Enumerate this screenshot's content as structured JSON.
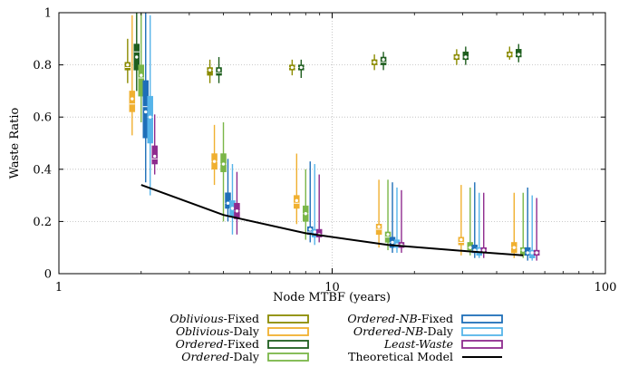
{
  "chart_data": {
    "type": "boxplot",
    "xscale": "log",
    "xlim": [
      1,
      100
    ],
    "ylim": [
      0,
      1
    ],
    "xlabel": "Node MTBF (years)",
    "ylabel": "Waste Ratio",
    "x_tick_labels": [
      "1",
      "10",
      "100"
    ],
    "y_tick_labels": [
      "0",
      "0.2",
      "0.4",
      "0.6",
      "0.8",
      "1"
    ],
    "grid": "dotted",
    "legend_position": "bottom",
    "categories": [
      2,
      4,
      8,
      16,
      32,
      50
    ],
    "series": [
      {
        "key": "oblivious-fixed",
        "name_em": "Oblivious",
        "name_rest": "-Fixed",
        "color": "#8b8b00",
        "stats": [
          {
            "min": 0.73,
            "q1": 0.78,
            "median": 0.79,
            "q3": 0.81,
            "max": 0.9,
            "mean": 0.8
          },
          {
            "min": 0.73,
            "q1": 0.76,
            "median": 0.78,
            "q3": 0.79,
            "max": 0.82,
            "mean": 0.78
          },
          {
            "min": 0.76,
            "q1": 0.78,
            "median": 0.79,
            "q3": 0.8,
            "max": 0.82,
            "mean": 0.79
          },
          {
            "min": 0.78,
            "q1": 0.8,
            "median": 0.81,
            "q3": 0.82,
            "max": 0.84,
            "mean": 0.81
          },
          {
            "min": 0.8,
            "q1": 0.82,
            "median": 0.83,
            "q3": 0.84,
            "max": 0.86,
            "mean": 0.83
          },
          {
            "min": 0.82,
            "q1": 0.83,
            "median": 0.84,
            "q3": 0.85,
            "max": 0.87,
            "mean": 0.84
          }
        ]
      },
      {
        "key": "oblivious-daly",
        "name_em": "Oblivious",
        "name_rest": "-Daly",
        "color": "#f0b030",
        "stats": [
          {
            "min": 0.53,
            "q1": 0.62,
            "median": 0.65,
            "q3": 0.7,
            "max": 0.99,
            "mean": 0.67
          },
          {
            "min": 0.34,
            "q1": 0.4,
            "median": 0.43,
            "q3": 0.46,
            "max": 0.57,
            "mean": 0.43
          },
          {
            "min": 0.19,
            "q1": 0.25,
            "median": 0.27,
            "q3": 0.3,
            "max": 0.46,
            "mean": 0.28
          },
          {
            "min": 0.1,
            "q1": 0.15,
            "median": 0.17,
            "q3": 0.19,
            "max": 0.36,
            "mean": 0.18
          },
          {
            "min": 0.07,
            "q1": 0.11,
            "median": 0.12,
            "q3": 0.14,
            "max": 0.34,
            "mean": 0.13
          },
          {
            "min": 0.06,
            "q1": 0.08,
            "median": 0.1,
            "q3": 0.12,
            "max": 0.31,
            "mean": 0.1
          }
        ]
      },
      {
        "key": "ordered-fixed",
        "name_em": "Ordered",
        "name_rest": "-Fixed",
        "color": "#1e5e1e",
        "stats": [
          {
            "min": 0.7,
            "q1": 0.78,
            "median": 0.85,
            "q3": 0.88,
            "max": 1.0,
            "mean": 0.83
          },
          {
            "min": 0.73,
            "q1": 0.76,
            "median": 0.77,
            "q3": 0.79,
            "max": 0.83,
            "mean": 0.78
          },
          {
            "min": 0.75,
            "q1": 0.78,
            "median": 0.79,
            "q3": 0.8,
            "max": 0.82,
            "mean": 0.79
          },
          {
            "min": 0.78,
            "q1": 0.8,
            "median": 0.81,
            "q3": 0.83,
            "max": 0.85,
            "mean": 0.82
          },
          {
            "min": 0.8,
            "q1": 0.82,
            "median": 0.83,
            "q3": 0.85,
            "max": 0.87,
            "mean": 0.83
          },
          {
            "min": 0.81,
            "q1": 0.83,
            "median": 0.84,
            "q3": 0.86,
            "max": 0.88,
            "mean": 0.84
          }
        ]
      },
      {
        "key": "ordered-daly",
        "name_em": "Ordered",
        "name_rest": "-Daly",
        "color": "#7ab648",
        "stats": [
          {
            "min": 0.58,
            "q1": 0.68,
            "median": 0.75,
            "q3": 0.8,
            "max": 1.0,
            "mean": 0.76
          },
          {
            "min": 0.2,
            "q1": 0.39,
            "median": 0.42,
            "q3": 0.46,
            "max": 0.58,
            "mean": 0.42
          },
          {
            "min": 0.13,
            "q1": 0.2,
            "median": 0.23,
            "q3": 0.26,
            "max": 0.4,
            "mean": 0.23
          },
          {
            "min": 0.09,
            "q1": 0.12,
            "median": 0.14,
            "q3": 0.16,
            "max": 0.36,
            "mean": 0.15
          },
          {
            "min": 0.07,
            "q1": 0.09,
            "median": 0.1,
            "q3": 0.12,
            "max": 0.33,
            "mean": 0.1
          },
          {
            "min": 0.06,
            "q1": 0.07,
            "median": 0.09,
            "q3": 0.1,
            "max": 0.31,
            "mean": 0.09
          }
        ]
      },
      {
        "key": "ordered-nb-fixed",
        "name_em": "Ordered-NB",
        "name_rest": "-Fixed",
        "color": "#1f6fb8",
        "stats": [
          {
            "min": 0.35,
            "q1": 0.52,
            "median": 0.64,
            "q3": 0.74,
            "max": 1.0,
            "mean": 0.62
          },
          {
            "min": 0.2,
            "q1": 0.25,
            "median": 0.27,
            "q3": 0.31,
            "max": 0.44,
            "mean": 0.27
          },
          {
            "min": 0.12,
            "q1": 0.15,
            "median": 0.16,
            "q3": 0.18,
            "max": 0.43,
            "mean": 0.17
          },
          {
            "min": 0.08,
            "q1": 0.1,
            "median": 0.12,
            "q3": 0.14,
            "max": 0.35,
            "mean": 0.12
          },
          {
            "min": 0.06,
            "q1": 0.08,
            "median": 0.09,
            "q3": 0.11,
            "max": 0.35,
            "mean": 0.09
          },
          {
            "min": 0.05,
            "q1": 0.07,
            "median": 0.08,
            "q3": 0.1,
            "max": 0.33,
            "mean": 0.08
          }
        ]
      },
      {
        "key": "ordered-nb-daly",
        "name_em": "Ordered-NB",
        "name_rest": "-Daly",
        "color": "#56b4e9",
        "stats": [
          {
            "min": 0.3,
            "q1": 0.5,
            "median": 0.6,
            "q3": 0.68,
            "max": 0.99,
            "mean": 0.6
          },
          {
            "min": 0.15,
            "q1": 0.22,
            "median": 0.25,
            "q3": 0.28,
            "max": 0.42,
            "mean": 0.25
          },
          {
            "min": 0.11,
            "q1": 0.14,
            "median": 0.15,
            "q3": 0.17,
            "max": 0.42,
            "mean": 0.16
          },
          {
            "min": 0.08,
            "q1": 0.1,
            "median": 0.11,
            "q3": 0.13,
            "max": 0.33,
            "mean": 0.11
          },
          {
            "min": 0.06,
            "q1": 0.07,
            "median": 0.09,
            "q3": 0.1,
            "max": 0.31,
            "mean": 0.09
          },
          {
            "min": 0.05,
            "q1": 0.06,
            "median": 0.08,
            "q3": 0.09,
            "max": 0.3,
            "mean": 0.08
          }
        ]
      },
      {
        "key": "least-waste",
        "name_em": "Least-Waste",
        "name_rest": "",
        "color": "#8e2b8e",
        "stats": [
          {
            "min": 0.38,
            "q1": 0.42,
            "median": 0.44,
            "q3": 0.49,
            "max": 0.61,
            "mean": 0.45
          },
          {
            "min": 0.15,
            "q1": 0.21,
            "median": 0.24,
            "q3": 0.27,
            "max": 0.39,
            "mean": 0.24
          },
          {
            "min": 0.12,
            "q1": 0.14,
            "median": 0.15,
            "q3": 0.17,
            "max": 0.38,
            "mean": 0.15
          },
          {
            "min": 0.08,
            "q1": 0.1,
            "median": 0.11,
            "q3": 0.12,
            "max": 0.32,
            "mean": 0.11
          },
          {
            "min": 0.06,
            "q1": 0.08,
            "median": 0.09,
            "q3": 0.1,
            "max": 0.31,
            "mean": 0.09
          },
          {
            "min": 0.05,
            "q1": 0.07,
            "median": 0.08,
            "q3": 0.09,
            "max": 0.29,
            "mean": 0.08
          }
        ]
      }
    ],
    "theoretical_model": {
      "name": "Theoretical Model",
      "color": "#000000",
      "x": [
        2,
        4,
        8,
        16,
        32,
        50
      ],
      "y": [
        0.34,
        0.225,
        0.155,
        0.11,
        0.085,
        0.07
      ]
    },
    "legend_order": [
      "oblivious-fixed",
      "oblivious-daly",
      "ordered-fixed",
      "ordered-daly",
      "ordered-nb-fixed",
      "ordered-nb-daly",
      "least-waste",
      "theoretical-model"
    ]
  }
}
